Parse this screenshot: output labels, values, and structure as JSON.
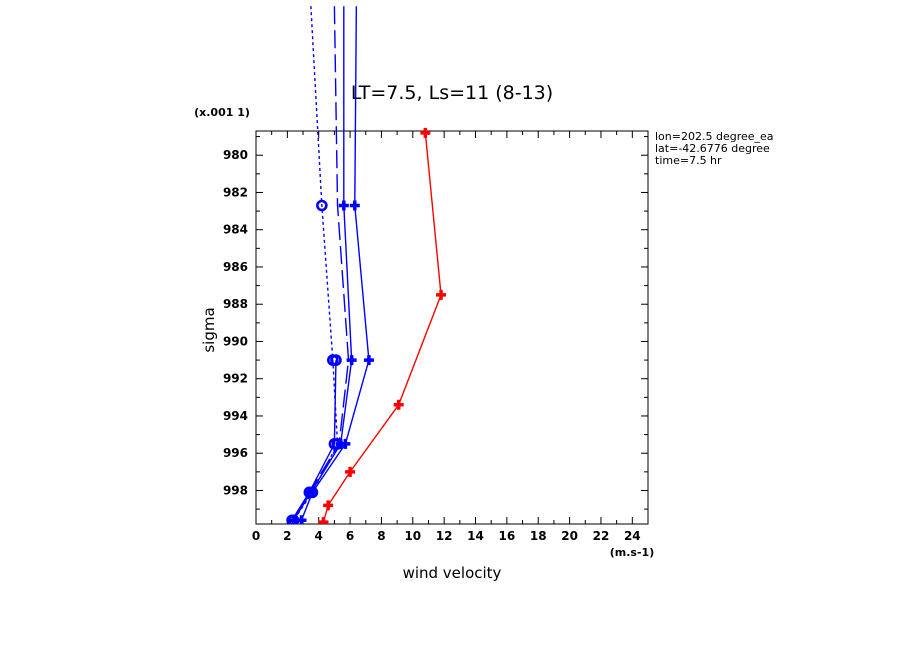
{
  "chart_data": {
    "type": "line",
    "title": "LT=7.5, Ls=11 (8-13)",
    "xlabel": "wind velocity",
    "ylabel": "sigma",
    "x_unit_label": "(m.s-1)",
    "y_scale_label": "(x.001 1)",
    "xlim": [
      0,
      25
    ],
    "ylim": [
      999.8,
      978.7
    ],
    "xticks": [
      0,
      2,
      4,
      6,
      8,
      10,
      12,
      14,
      16,
      18,
      20,
      22,
      24
    ],
    "xtick_labels": [
      "0",
      "2",
      "4",
      "6",
      "8",
      "10",
      "12",
      "14",
      "16",
      "18",
      "20",
      "22",
      "24"
    ],
    "yticks": [
      980,
      982,
      984,
      986,
      988,
      990,
      992,
      994,
      996,
      998
    ],
    "ytick_labels": [
      "980",
      "982",
      "984",
      "986",
      "988",
      "990",
      "992",
      "994",
      "996",
      "998"
    ],
    "annotations": [
      "lon=202.5 degree_ea",
      "lat=-42.6776 degree",
      "time=7.5 hr"
    ],
    "series": [
      {
        "color": "#ff0000",
        "dash": "solid",
        "marker": "plus",
        "points": [
          [
            10.8,
            978.8
          ],
          [
            11.8,
            987.5
          ],
          [
            9.1,
            993.4
          ],
          [
            6.0,
            997.0
          ],
          [
            4.6,
            998.8
          ],
          [
            4.3,
            999.7
          ]
        ]
      },
      {
        "color": "#0000ff",
        "dash": "solid",
        "marker": "plus",
        "points": [
          [
            6.4,
            972.0
          ],
          [
            6.3,
            982.7
          ],
          [
            7.2,
            991.0
          ],
          [
            5.7,
            995.5
          ],
          [
            3.6,
            998.1
          ],
          [
            2.9,
            999.6
          ]
        ]
      },
      {
        "color": "#0000ff",
        "dash": "solid",
        "marker": "plus",
        "points": [
          [
            5.6,
            972.0
          ],
          [
            5.6,
            982.7
          ],
          [
            6.1,
            991.0
          ],
          [
            5.4,
            995.5
          ],
          [
            3.5,
            998.1
          ],
          [
            2.4,
            999.6
          ]
        ]
      },
      {
        "color": "#0000ff",
        "dash": "long-dash",
        "marker": "none",
        "points": [
          [
            5.0,
            972.0
          ],
          [
            5.2,
            982.7
          ],
          [
            5.9,
            991.0
          ],
          [
            5.3,
            995.5
          ],
          [
            3.4,
            998.1
          ],
          [
            2.3,
            999.6
          ]
        ]
      },
      {
        "color": "#0000ff",
        "dash": "solid",
        "marker": "circle",
        "points": [
          [
            5.1,
            991.0
          ],
          [
            5.0,
            995.5
          ],
          [
            3.4,
            998.1
          ],
          [
            2.3,
            999.6
          ]
        ]
      },
      {
        "color": "#0000ff",
        "dash": "dotted",
        "marker": "circle",
        "points": [
          [
            3.5,
            972.0
          ],
          [
            4.2,
            982.7
          ],
          [
            4.9,
            991.0
          ],
          [
            5.2,
            995.5
          ],
          [
            3.6,
            998.1
          ],
          [
            2.4,
            999.6
          ]
        ]
      }
    ]
  }
}
